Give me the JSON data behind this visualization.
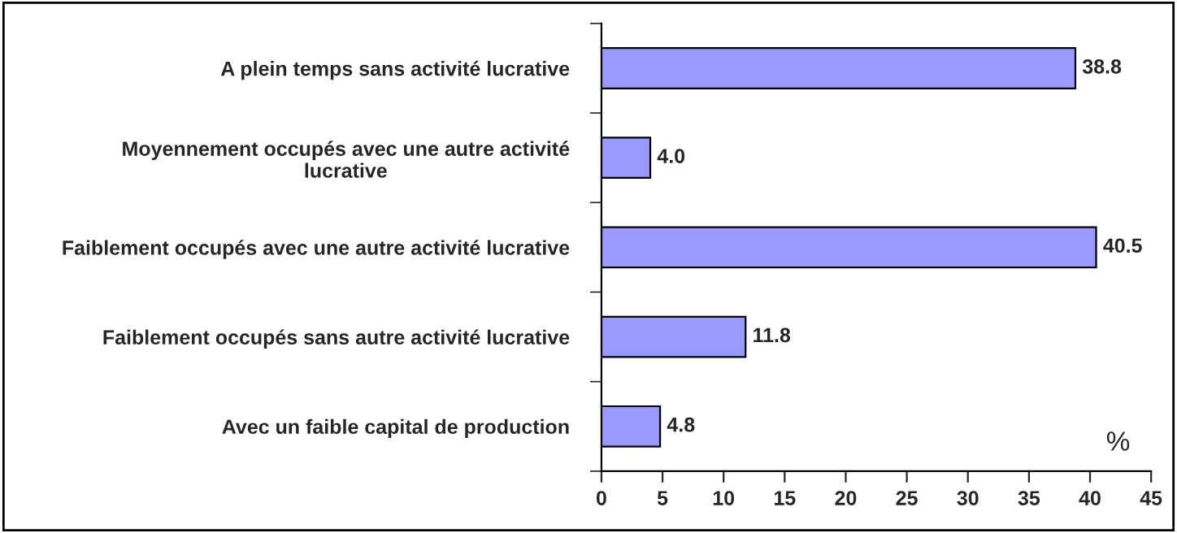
{
  "chart_data": {
    "type": "bar",
    "orientation": "horizontal",
    "categories": [
      "A plein temps sans activité lucrative",
      "Moyennement occupés avec une autre activité\nlucrative",
      "Faiblement occupés avec une autre activité lucrative",
      "Faiblement occupés sans autre activité lucrative",
      "Avec un faible capital de production"
    ],
    "values": [
      38.8,
      4.0,
      40.5,
      11.8,
      4.8
    ],
    "value_labels": [
      "38.8",
      "4.0",
      "40.5",
      "11.8",
      "4.8"
    ],
    "color": "#9999ff",
    "xlabel": "%",
    "xlim": [
      0,
      45
    ],
    "xticks": [
      0,
      5,
      10,
      15,
      20,
      25,
      30,
      35,
      40,
      45
    ],
    "grid": false
  }
}
